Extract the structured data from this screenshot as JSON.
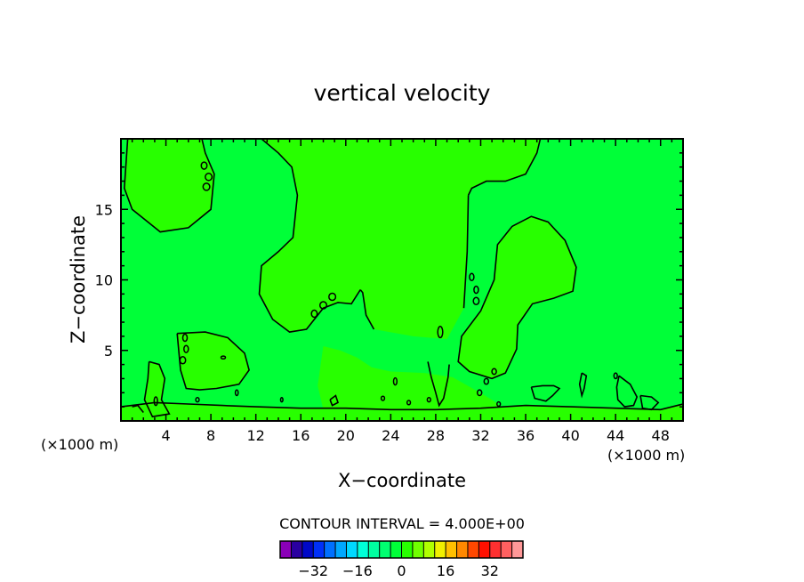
{
  "chart_data": {
    "type": "heatmap",
    "title": "vertical velocity",
    "xlabel": "X−coordinate",
    "ylabel": "Z−coordinate",
    "x_unit_left": "(×1000 m)",
    "x_unit_right": "(×1000 m)",
    "xlim": [
      0,
      50
    ],
    "ylim": [
      0,
      20
    ],
    "x_ticks": [
      4,
      8,
      12,
      16,
      20,
      24,
      28,
      32,
      36,
      40,
      44,
      48
    ],
    "y_ticks": [
      5,
      10,
      15
    ],
    "contour_interval_label": "CONTOUR INTERVAL = 4.000E+00",
    "colorbar": {
      "ticks": [
        -32,
        -16,
        0,
        16,
        32
      ],
      "tick_labels": [
        "−32",
        "−16",
        "0",
        "16",
        "32"
      ],
      "colors": [
        "#8a00b8",
        "#2a00a0",
        "#0008c8",
        "#0030f8",
        "#0070ff",
        "#00a8ff",
        "#00d8ff",
        "#00ffd8",
        "#00ffa0",
        "#00ff70",
        "#00ff38",
        "#28ff00",
        "#70ff00",
        "#b0ff00",
        "#f0f000",
        "#ffc000",
        "#ff8800",
        "#ff4800",
        "#ff1000",
        "#ff3030",
        "#ff6060",
        "#ff9898"
      ]
    },
    "fill_colors": {
      "background": "#00ff38",
      "positive_zone": "#28ff00"
    },
    "regions": [
      {
        "name": "upper-left-cell",
        "fill": "#28ff00",
        "points": [
          [
            0.6,
            20
          ],
          [
            0.3,
            16.5
          ],
          [
            1,
            15
          ],
          [
            3.5,
            13.4
          ],
          [
            6,
            13.7
          ],
          [
            8,
            15
          ],
          [
            8.3,
            17.5
          ],
          [
            7.5,
            19
          ],
          [
            7.2,
            20
          ]
        ]
      },
      {
        "name": "central-updraft",
        "fill": "#28ff00",
        "points": [
          [
            12.5,
            20
          ],
          [
            14,
            19
          ],
          [
            15.2,
            18
          ],
          [
            15.7,
            16
          ],
          [
            15.3,
            13
          ],
          [
            14,
            12
          ],
          [
            12.5,
            11
          ],
          [
            12.3,
            9
          ],
          [
            13.5,
            7.2
          ],
          [
            15,
            6.3
          ],
          [
            16.5,
            6.5
          ],
          [
            18,
            8
          ],
          [
            19.3,
            8.4
          ],
          [
            20.5,
            8.3
          ],
          [
            21.3,
            9.3
          ],
          [
            21.5,
            9.1
          ],
          [
            21.8,
            7.5
          ],
          [
            22.5,
            6.5
          ],
          [
            26,
            6
          ],
          [
            29,
            5.8
          ],
          [
            30.5,
            8
          ],
          [
            30.8,
            12
          ],
          [
            30.9,
            16
          ],
          [
            31.2,
            16.5
          ],
          [
            32.5,
            17
          ],
          [
            34.2,
            17
          ],
          [
            36,
            17.5
          ],
          [
            37,
            19
          ],
          [
            37.3,
            20
          ]
        ]
      },
      {
        "name": "right-lobe",
        "fill": "#28ff00",
        "points": [
          [
            34.8,
            13.8
          ],
          [
            36.5,
            14.5
          ],
          [
            38,
            14.1
          ],
          [
            39.5,
            12.8
          ],
          [
            40.5,
            10.9
          ],
          [
            40.2,
            9.2
          ],
          [
            38.5,
            8.7
          ],
          [
            36.6,
            8.3
          ],
          [
            35.3,
            6.8
          ],
          [
            35.2,
            5.1
          ],
          [
            34.2,
            3.4
          ],
          [
            33,
            3
          ],
          [
            31,
            3.5
          ],
          [
            30,
            4.2
          ],
          [
            30.3,
            6
          ],
          [
            32,
            7.8
          ],
          [
            33.2,
            10
          ],
          [
            33.5,
            12.5
          ]
        ]
      },
      {
        "name": "low-left-cell",
        "fill": "#28ff00",
        "points": [
          [
            5,
            6.2
          ],
          [
            7.5,
            6.3
          ],
          [
            9.5,
            5.9
          ],
          [
            11,
            4.8
          ],
          [
            11.4,
            3.6
          ],
          [
            10.5,
            2.6
          ],
          [
            8.5,
            2.3
          ],
          [
            7,
            2.2
          ],
          [
            5.8,
            2.3
          ],
          [
            5.3,
            3.6
          ]
        ]
      },
      {
        "name": "lower-mid-cell",
        "fill": "#28ff00",
        "points": [
          [
            18,
            5.3
          ],
          [
            19.5,
            5
          ],
          [
            21,
            4.5
          ],
          [
            22.3,
            3.8
          ],
          [
            24,
            3.5
          ],
          [
            27,
            3.4
          ],
          [
            29.5,
            3.1
          ],
          [
            31.5,
            2.2
          ],
          [
            33,
            1.5
          ],
          [
            34,
            0.9
          ],
          [
            30,
            0.6
          ],
          [
            25,
            0.5
          ],
          [
            20,
            0.5
          ],
          [
            18,
            0.8
          ],
          [
            17.5,
            2.5
          ]
        ]
      },
      {
        "name": "lower-left-cell",
        "fill": "#28ff00",
        "points": [
          [
            2.5,
            4.2
          ],
          [
            3.4,
            4
          ],
          [
            3.9,
            3
          ],
          [
            3.6,
            1.5
          ],
          [
            4.3,
            0.5
          ],
          [
            2.8,
            0.3
          ],
          [
            2.1,
            1.5
          ],
          [
            2.4,
            3
          ]
        ]
      },
      {
        "name": "surface-band",
        "fill": "#28ff00",
        "points": [
          [
            0,
            1
          ],
          [
            3,
            1.3
          ],
          [
            6,
            1.2
          ],
          [
            9,
            1.1
          ],
          [
            12,
            1
          ],
          [
            16,
            0.9
          ],
          [
            20,
            0.9
          ],
          [
            24,
            0.8
          ],
          [
            28,
            0.8
          ],
          [
            32,
            0.9
          ],
          [
            36,
            1.1
          ],
          [
            40,
            1
          ],
          [
            44,
            0.9
          ],
          [
            48,
            0.8
          ],
          [
            50,
            1.2
          ],
          [
            50,
            0
          ],
          [
            0,
            0
          ]
        ]
      }
    ],
    "contours": [
      [
        [
          0.6,
          20
        ],
        [
          0.3,
          16.5
        ],
        [
          1,
          15
        ],
        [
          3.5,
          13.4
        ],
        [
          6,
          13.7
        ],
        [
          8,
          15
        ],
        [
          8.3,
          17.5
        ],
        [
          7.5,
          19
        ],
        [
          7.2,
          20
        ]
      ],
      [
        [
          12.5,
          20
        ],
        [
          14,
          19
        ],
        [
          15.2,
          18
        ],
        [
          15.7,
          16
        ],
        [
          15.3,
          13
        ],
        [
          14,
          12
        ],
        [
          12.5,
          11
        ],
        [
          12.3,
          9
        ],
        [
          13.5,
          7.2
        ],
        [
          15,
          6.3
        ],
        [
          16.5,
          6.5
        ],
        [
          18,
          8
        ],
        [
          19.3,
          8.4
        ],
        [
          20.5,
          8.3
        ],
        [
          21.3,
          9.3
        ]
      ],
      [
        [
          21.3,
          9.3
        ],
        [
          21.5,
          9.1
        ],
        [
          21.8,
          7.5
        ],
        [
          22.5,
          6.5
        ]
      ],
      [
        [
          30.9,
          16
        ],
        [
          31.2,
          16.5
        ],
        [
          32.5,
          17
        ],
        [
          34.2,
          17
        ],
        [
          36,
          17.5
        ],
        [
          37,
          19
        ],
        [
          37.3,
          20
        ]
      ],
      [
        [
          30.5,
          8
        ],
        [
          30.8,
          12
        ],
        [
          30.9,
          16
        ]
      ],
      [
        [
          34.8,
          13.8
        ],
        [
          36.5,
          14.5
        ],
        [
          38,
          14.1
        ],
        [
          39.5,
          12.8
        ],
        [
          40.5,
          10.9
        ],
        [
          40.2,
          9.2
        ],
        [
          38.5,
          8.7
        ],
        [
          36.6,
          8.3
        ],
        [
          35.3,
          6.8
        ],
        [
          35.2,
          5.1
        ],
        [
          34.2,
          3.4
        ],
        [
          33,
          3
        ],
        [
          31,
          3.5
        ],
        [
          30,
          4.2
        ],
        [
          30.3,
          6
        ],
        [
          32,
          7.8
        ],
        [
          33.2,
          10
        ],
        [
          33.5,
          12.5
        ],
        [
          34.8,
          13.8
        ]
      ],
      [
        [
          5,
          6.2
        ],
        [
          7.5,
          6.3
        ],
        [
          9.5,
          5.9
        ],
        [
          11,
          4.8
        ],
        [
          11.4,
          3.6
        ],
        [
          10.5,
          2.6
        ],
        [
          8.5,
          2.3
        ],
        [
          7,
          2.2
        ],
        [
          5.8,
          2.3
        ],
        [
          5.3,
          3.6
        ],
        [
          5,
          6.2
        ]
      ],
      [
        [
          2.5,
          4.2
        ],
        [
          3.4,
          4
        ],
        [
          3.9,
          3
        ],
        [
          3.6,
          1.5
        ],
        [
          4.3,
          0.5
        ],
        [
          2.8,
          0.3
        ],
        [
          2.1,
          1.5
        ],
        [
          2.4,
          3
        ],
        [
          2.5,
          4.2
        ]
      ],
      [
        [
          0,
          1
        ],
        [
          3,
          1.3
        ],
        [
          6,
          1.2
        ],
        [
          9,
          1.1
        ],
        [
          12,
          1
        ],
        [
          16,
          0.9
        ],
        [
          20,
          0.9
        ],
        [
          24,
          0.8
        ],
        [
          28,
          0.8
        ],
        [
          32,
          0.9
        ],
        [
          36,
          1.1
        ],
        [
          40,
          1
        ],
        [
          44,
          0.9
        ],
        [
          48,
          0.8
        ],
        [
          50,
          1.2
        ]
      ],
      [
        [
          27.3,
          4.2
        ],
        [
          27.6,
          3.1
        ],
        [
          28,
          2
        ],
        [
          28.3,
          1.1
        ],
        [
          28.7,
          1.6
        ],
        [
          29.1,
          3.1
        ],
        [
          29.2,
          4
        ]
      ],
      [
        [
          36.5,
          2.4
        ],
        [
          37.5,
          2.5
        ],
        [
          38.5,
          2.5
        ],
        [
          39,
          2.3
        ],
        [
          38.4,
          1.8
        ],
        [
          37.8,
          1.4
        ],
        [
          36.8,
          1.6
        ],
        [
          36.5,
          2.4
        ]
      ],
      [
        [
          41,
          3.4
        ],
        [
          41.4,
          3.2
        ],
        [
          41.2,
          2.3
        ],
        [
          41,
          1.8
        ],
        [
          40.8,
          2.6
        ],
        [
          41,
          3.4
        ]
      ],
      [
        [
          44.3,
          3.2
        ],
        [
          45.3,
          2.6
        ],
        [
          45.9,
          1.7
        ],
        [
          45.6,
          1.1
        ],
        [
          44.8,
          1
        ],
        [
          44.2,
          1.5
        ],
        [
          44.1,
          2.4
        ],
        [
          44.3,
          3.2
        ]
      ],
      [
        [
          46.2,
          1.8
        ],
        [
          47.2,
          1.7
        ],
        [
          47.8,
          1.3
        ],
        [
          47.2,
          0.8
        ],
        [
          46.4,
          0.9
        ],
        [
          46.2,
          1.8
        ]
      ],
      [
        [
          1,
          1
        ],
        [
          1.5,
          1.1
        ],
        [
          2,
          0.6
        ]
      ],
      [
        [
          18.6,
          1.5
        ],
        [
          19.1,
          1.8
        ],
        [
          19.3,
          1.3
        ],
        [
          18.8,
          1.1
        ],
        [
          18.6,
          1.5
        ]
      ]
    ],
    "small_loops": [
      {
        "x": 7.4,
        "y": 18.1,
        "w": 0.5,
        "h": 0.5
      },
      {
        "x": 7.8,
        "y": 17.3,
        "w": 0.6,
        "h": 0.5
      },
      {
        "x": 7.6,
        "y": 16.6,
        "w": 0.6,
        "h": 0.5
      },
      {
        "x": 5.7,
        "y": 5.9,
        "w": 0.4,
        "h": 0.5
      },
      {
        "x": 5.8,
        "y": 5.1,
        "w": 0.4,
        "h": 0.5
      },
      {
        "x": 5.5,
        "y": 4.3,
        "w": 0.5,
        "h": 0.5
      },
      {
        "x": 9.1,
        "y": 4.5,
        "w": 0.4,
        "h": 0.2
      },
      {
        "x": 17.2,
        "y": 7.6,
        "w": 0.5,
        "h": 0.5
      },
      {
        "x": 18,
        "y": 8.2,
        "w": 0.6,
        "h": 0.5
      },
      {
        "x": 18.8,
        "y": 8.8,
        "w": 0.6,
        "h": 0.5
      },
      {
        "x": 31.2,
        "y": 10.2,
        "w": 0.4,
        "h": 0.5
      },
      {
        "x": 31.6,
        "y": 9.3,
        "w": 0.4,
        "h": 0.5
      },
      {
        "x": 31.6,
        "y": 8.5,
        "w": 0.5,
        "h": 0.5
      },
      {
        "x": 28.4,
        "y": 6.3,
        "w": 0.45,
        "h": 0.8
      },
      {
        "x": 33.2,
        "y": 3.5,
        "w": 0.4,
        "h": 0.4
      },
      {
        "x": 32.5,
        "y": 2.8,
        "w": 0.4,
        "h": 0.4
      },
      {
        "x": 31.9,
        "y": 2,
        "w": 0.4,
        "h": 0.4
      },
      {
        "x": 24.4,
        "y": 2.8,
        "w": 0.3,
        "h": 0.5
      },
      {
        "x": 23.3,
        "y": 1.6,
        "w": 0.3,
        "h": 0.3
      },
      {
        "x": 25.6,
        "y": 1.3,
        "w": 0.3,
        "h": 0.3
      },
      {
        "x": 27.4,
        "y": 1.5,
        "w": 0.3,
        "h": 0.3
      },
      {
        "x": 33.6,
        "y": 1.2,
        "w": 0.3,
        "h": 0.3
      },
      {
        "x": 44,
        "y": 3.2,
        "w": 0.3,
        "h": 0.4
      },
      {
        "x": 6.8,
        "y": 1.5,
        "w": 0.3,
        "h": 0.3
      },
      {
        "x": 10.3,
        "y": 2,
        "w": 0.25,
        "h": 0.4
      },
      {
        "x": 3.1,
        "y": 1.4,
        "w": 0.3,
        "h": 0.6
      },
      {
        "x": 14.3,
        "y": 1.5,
        "w": 0.2,
        "h": 0.3
      }
    ]
  }
}
